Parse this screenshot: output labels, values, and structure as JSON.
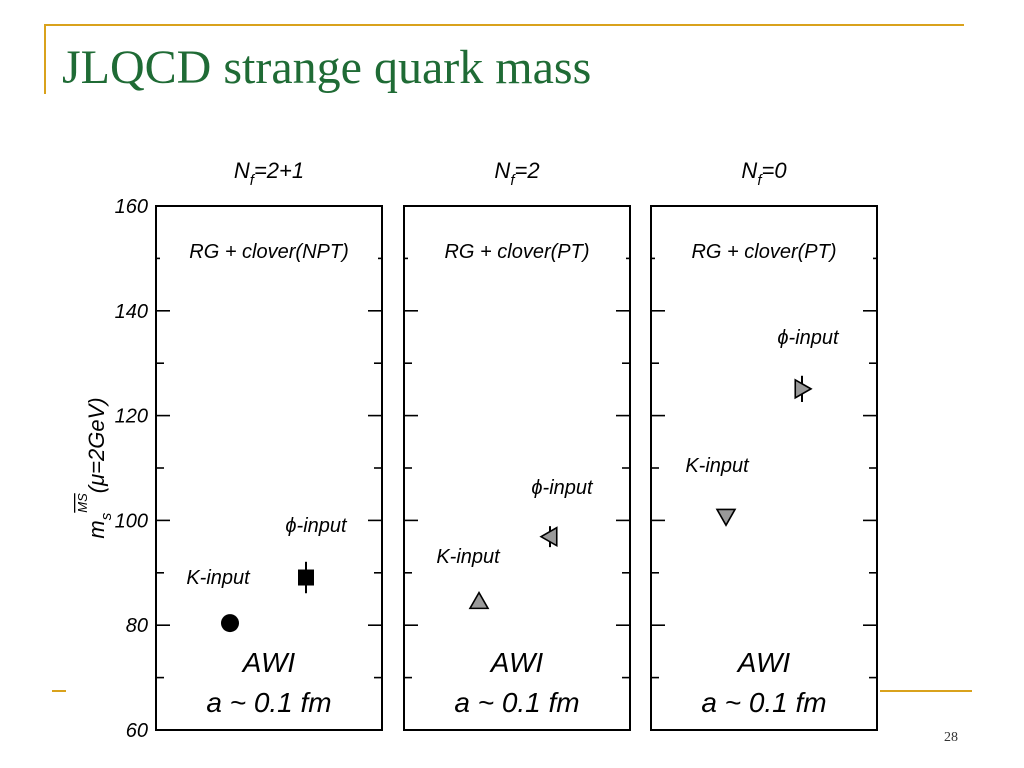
{
  "slide": {
    "title": "JLQCD strange quark mass",
    "page_number": "28",
    "accent_color": "#d9a21c",
    "title_color": "#1f6b35"
  },
  "chart_data": {
    "type": "scatter",
    "ylabel_symbol": "m",
    "ylabel_sub": "s",
    "ylabel_sup": "MS",
    "ylabel_tail": "(μ=2GeV)",
    "ylim": [
      60,
      160
    ],
    "yticks": [
      60,
      80,
      100,
      120,
      140,
      160
    ],
    "panels": [
      {
        "header_main": "N",
        "header_sub": "f",
        "header_tail": "=2+1",
        "action": "RG + clover(NPT)",
        "bottom_line1": "AWI",
        "bottom_line2": "a ~ 0.1 fm",
        "points": [
          {
            "label": "K-input",
            "value": 80.4,
            "err": 1.5,
            "marker": "circle",
            "fill": "#000000"
          },
          {
            "label": "ϕ-input",
            "value": 89.1,
            "err": 3.0,
            "marker": "square",
            "fill": "#000000"
          }
        ]
      },
      {
        "header_main": "N",
        "header_sub": "f",
        "header_tail": "=2",
        "action": "RG + clover(PT)",
        "bottom_line1": "AWI",
        "bottom_line2": "a ~ 0.1 fm",
        "points": [
          {
            "label": "K-input",
            "value": 84.5,
            "err": 1.0,
            "marker": "triangle-up",
            "fill": "#9a9a9a"
          },
          {
            "label": "ϕ-input",
            "value": 96.9,
            "err": 2.0,
            "marker": "triangle-left",
            "fill": "#9a9a9a"
          }
        ]
      },
      {
        "header_main": "N",
        "header_sub": "f",
        "header_tail": "=0",
        "action": "RG + clover(PT)",
        "bottom_line1": "AWI",
        "bottom_line2": "a ~ 0.1 fm",
        "points": [
          {
            "label": "K-input",
            "value": 100.8,
            "err": 1.0,
            "marker": "triangle-down",
            "fill": "#9a9a9a"
          },
          {
            "label": "ϕ-input",
            "value": 125.1,
            "err": 2.5,
            "marker": "triangle-right",
            "fill": "#9a9a9a"
          }
        ]
      }
    ]
  }
}
